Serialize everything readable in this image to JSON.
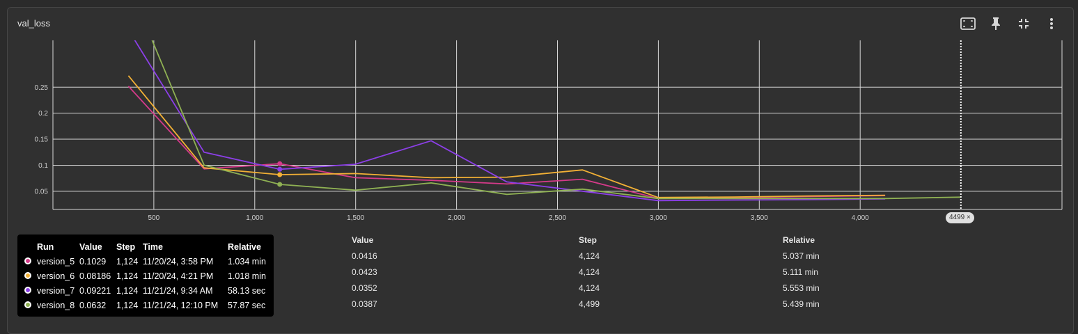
{
  "card": {
    "title": "val_loss",
    "icons": [
      "fit-domain-icon",
      "pin-icon",
      "collapse-icon",
      "more-vert-icon"
    ]
  },
  "colors": {
    "version_5": "#d63a8a",
    "version_6": "#f2b035",
    "version_7": "#8c3fe8",
    "version_8": "#8fb153",
    "grid": "#d8d8d8",
    "axis_text": "#d0d0d0"
  },
  "chart_data": {
    "type": "line",
    "title": "val_loss",
    "xlim": [
      0,
      5000
    ],
    "ylim": [
      0.015,
      0.34
    ],
    "x_ticks": [
      500,
      1000,
      1500,
      2000,
      2500,
      3000,
      3500,
      4000
    ],
    "x_tick_labels": [
      "500",
      "1,000",
      "1,500",
      "2,000",
      "2,500",
      "3,000",
      "3,500",
      "4,000"
    ],
    "y_ticks": [
      0.05,
      0.1,
      0.15,
      0.2,
      0.25
    ],
    "y_tick_labels": [
      "0.05",
      "0.1",
      "0.15",
      "0.2",
      "0.25"
    ],
    "hover_x": 4499,
    "hover_x_label": "4499",
    "series": [
      {
        "name": "version_5",
        "x": [
          374,
          749,
          1124,
          1499,
          1874,
          2249,
          2624,
          2999,
          3374,
          3749,
          4124
        ],
        "y": [
          0.252,
          0.093,
          0.1029,
          0.076,
          0.071,
          0.064,
          0.073,
          0.036,
          0.038,
          0.04,
          0.0416
        ]
      },
      {
        "name": "version_6",
        "x": [
          374,
          749,
          1124,
          1499,
          1874,
          2249,
          2624,
          2999,
          3374,
          3749,
          4124
        ],
        "y": [
          0.272,
          0.095,
          0.08186,
          0.084,
          0.076,
          0.077,
          0.091,
          0.038,
          0.039,
          0.041,
          0.0423
        ]
      },
      {
        "name": "version_7",
        "x": [
          374,
          749,
          1124,
          1499,
          1874,
          2249,
          2624,
          2999,
          3374,
          3749,
          4124
        ],
        "y": [
          0.36,
          0.125,
          0.09221,
          0.102,
          0.147,
          0.068,
          0.05,
          0.032,
          0.033,
          0.034,
          0.0352
        ]
      },
      {
        "name": "version_8",
        "x": [
          374,
          749,
          1124,
          1499,
          1874,
          2249,
          2624,
          2999,
          3374,
          3749,
          4124,
          4499
        ],
        "y": [
          0.45,
          0.1,
          0.0632,
          0.052,
          0.066,
          0.044,
          0.054,
          0.036,
          0.036,
          0.036,
          0.036,
          0.0387
        ]
      }
    ]
  },
  "table": {
    "headers": {
      "value": "Value",
      "step": "Step",
      "relative": "Relative"
    },
    "rows": [
      {
        "value": "0.0416",
        "step": "4,124",
        "relative": "5.037 min"
      },
      {
        "value": "0.0423",
        "step": "4,124",
        "relative": "5.111 min"
      },
      {
        "value": "0.0352",
        "step": "4,124",
        "relative": "5.553 min"
      },
      {
        "value": "0.0387",
        "step": "4,499",
        "relative": "5.439 min"
      }
    ]
  },
  "tooltip": {
    "headers": {
      "run": "Run",
      "value": "Value",
      "step": "Step",
      "time": "Time",
      "relative": "Relative"
    },
    "rows": [
      {
        "run": "version_5",
        "value": "0.1029",
        "step": "1,124",
        "time": "11/20/24, 3:58 PM",
        "relative": "1.034 min"
      },
      {
        "run": "version_6",
        "value": "0.08186",
        "step": "1,124",
        "time": "11/20/24, 4:21 PM",
        "relative": "1.018 min"
      },
      {
        "run": "version_7",
        "value": "0.09221",
        "step": "1,124",
        "time": "11/21/24, 9:34 AM",
        "relative": "58.13 sec"
      },
      {
        "run": "version_8",
        "value": "0.0632",
        "step": "1,124",
        "time": "11/21/24, 12:10 PM",
        "relative": "57.87 sec"
      }
    ]
  }
}
